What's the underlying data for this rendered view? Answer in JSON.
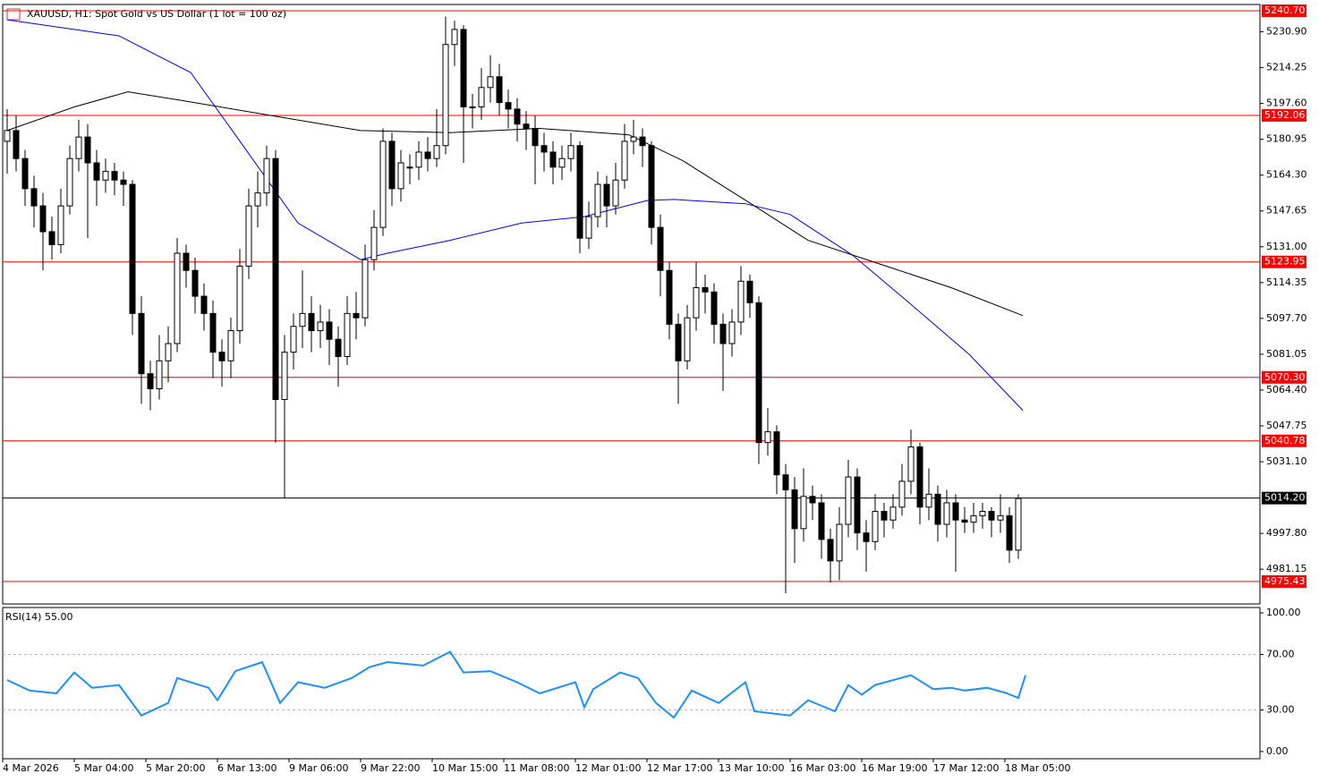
{
  "chart_data": {
    "type": "candlestick",
    "title": "XAUUSD, H1:  Spot Gold vs US Dollar (1 lot = 100 oz)",
    "ylim": [
      4965.0,
      5243.6
    ],
    "yticks": [
      {
        "value": 5230.9,
        "label": "5230.90"
      },
      {
        "value": 5214.25,
        "label": "5214.25"
      },
      {
        "value": 5197.6,
        "label": "5197.60"
      },
      {
        "value": 5180.95,
        "label": "5180.95"
      },
      {
        "value": 5164.3,
        "label": "5164.30"
      },
      {
        "value": 5147.65,
        "label": "5147.65"
      },
      {
        "value": 5131.0,
        "label": "5131.00"
      },
      {
        "value": 5114.35,
        "label": "5114.35"
      },
      {
        "value": 5097.7,
        "label": "5097.70"
      },
      {
        "value": 5081.05,
        "label": "5081.05"
      },
      {
        "value": 5064.4,
        "label": "5064.40"
      },
      {
        "value": 5047.75,
        "label": "5047.75"
      },
      {
        "value": 5031.1,
        "label": "5031.10"
      },
      {
        "value": 4997.8,
        "label": "4997.80"
      },
      {
        "value": 4981.15,
        "label": "4981.15"
      }
    ],
    "levels": [
      {
        "value": 5240.7,
        "label": "5240.70",
        "color": "#ff0000"
      },
      {
        "value": 5192.06,
        "label": "5192.06",
        "color": "#ff0000"
      },
      {
        "value": 5123.95,
        "label": "5123.95",
        "color": "#ff0000"
      },
      {
        "value": 5070.3,
        "label": "5070.30",
        "color": "#ff0000"
      },
      {
        "value": 5040.78,
        "label": "5040.78",
        "color": "#ff0000"
      },
      {
        "value": 5014.2,
        "label": "5014.20",
        "color": "#000000"
      },
      {
        "value": 4975.43,
        "label": "4975.43",
        "color": "#ff0000"
      }
    ],
    "xlabels": [
      "4 Mar 2026",
      "5 Mar 04:00",
      "5 Mar 20:00",
      "6 Mar 13:00",
      "9 Mar 06:00",
      "9 Mar 22:00",
      "10 Mar 15:00",
      "11 Mar 08:00",
      "12 Mar 01:00",
      "12 Mar 17:00",
      "13 Mar 10:00",
      "16 Mar 03:00",
      "16 Mar 19:00",
      "17 Mar 12:00",
      "18 Mar 05:00"
    ],
    "ohlc": [
      [
        5180,
        5195,
        5165,
        5185
      ],
      [
        5185,
        5192,
        5166,
        5172
      ],
      [
        5172,
        5176,
        5150,
        5158
      ],
      [
        5158,
        5164,
        5140,
        5150
      ],
      [
        5150,
        5156,
        5120,
        5138
      ],
      [
        5138,
        5145,
        5125,
        5132
      ],
      [
        5132,
        5158,
        5128,
        5150
      ],
      [
        5150,
        5178,
        5146,
        5172
      ],
      [
        5172,
        5190,
        5166,
        5182
      ],
      [
        5182,
        5188,
        5135,
        5170
      ],
      [
        5170,
        5176,
        5150,
        5162
      ],
      [
        5162,
        5172,
        5156,
        5166
      ],
      [
        5166,
        5170,
        5155,
        5162
      ],
      [
        5162,
        5166,
        5150,
        5160
      ],
      [
        5160,
        5162,
        5090,
        5100
      ],
      [
        5100,
        5108,
        5058,
        5072
      ],
      [
        5072,
        5078,
        5055,
        5065
      ],
      [
        5065,
        5090,
        5060,
        5078
      ],
      [
        5078,
        5094,
        5068,
        5086
      ],
      [
        5086,
        5135,
        5082,
        5128
      ],
      [
        5128,
        5132,
        5112,
        5120
      ],
      [
        5120,
        5126,
        5100,
        5108
      ],
      [
        5108,
        5114,
        5092,
        5100
      ],
      [
        5100,
        5106,
        5070,
        5082
      ],
      [
        5082,
        5088,
        5066,
        5078
      ],
      [
        5078,
        5098,
        5070,
        5092
      ],
      [
        5092,
        5130,
        5086,
        5122
      ],
      [
        5122,
        5158,
        5116,
        5150
      ],
      [
        5150,
        5166,
        5140,
        5156
      ],
      [
        5156,
        5178,
        5150,
        5172
      ],
      [
        5172,
        5176,
        5040,
        5060
      ],
      [
        5060,
        5090,
        5014,
        5082
      ],
      [
        5082,
        5100,
        5074,
        5094
      ],
      [
        5094,
        5120,
        5084,
        5100
      ],
      [
        5100,
        5108,
        5082,
        5092
      ],
      [
        5092,
        5104,
        5084,
        5096
      ],
      [
        5096,
        5102,
        5076,
        5088
      ],
      [
        5088,
        5094,
        5066,
        5080
      ],
      [
        5080,
        5108,
        5076,
        5100
      ],
      [
        5100,
        5110,
        5088,
        5098
      ],
      [
        5098,
        5132,
        5094,
        5125
      ],
      [
        5125,
        5148,
        5120,
        5140
      ],
      [
        5140,
        5186,
        5136,
        5180
      ],
      [
        5180,
        5184,
        5150,
        5158
      ],
      [
        5158,
        5176,
        5152,
        5170
      ],
      [
        5168,
        5174,
        5160,
        5168
      ],
      [
        5168,
        5180,
        5162,
        5175
      ],
      [
        5175,
        5182,
        5166,
        5172
      ],
      [
        5172,
        5195,
        5168,
        5178
      ],
      [
        5178,
        5238,
        5174,
        5225
      ],
      [
        5225,
        5236,
        5215,
        5232
      ],
      [
        5232,
        5234,
        5170,
        5196
      ],
      [
        5196,
        5202,
        5186,
        5196
      ],
      [
        5196,
        5214,
        5190,
        5205
      ],
      [
        5205,
        5220,
        5198,
        5210
      ],
      [
        5210,
        5216,
        5192,
        5198
      ],
      [
        5198,
        5204,
        5186,
        5195
      ],
      [
        5195,
        5200,
        5180,
        5188
      ],
      [
        5188,
        5194,
        5176,
        5186
      ],
      [
        5186,
        5192,
        5160,
        5178
      ],
      [
        5178,
        5184,
        5166,
        5175
      ],
      [
        5175,
        5180,
        5160,
        5168
      ],
      [
        5168,
        5178,
        5162,
        5172
      ],
      [
        5172,
        5184,
        5166,
        5178
      ],
      [
        5178,
        5180,
        5128,
        5135
      ],
      [
        5135,
        5152,
        5130,
        5145
      ],
      [
        5145,
        5166,
        5140,
        5160
      ],
      [
        5160,
        5164,
        5140,
        5150
      ],
      [
        5150,
        5170,
        5146,
        5162
      ],
      [
        5162,
        5188,
        5158,
        5180
      ],
      [
        5180,
        5190,
        5174,
        5182
      ],
      [
        5182,
        5186,
        5168,
        5178
      ],
      [
        5178,
        5180,
        5132,
        5140
      ],
      [
        5140,
        5146,
        5108,
        5120
      ],
      [
        5120,
        5124,
        5088,
        5095
      ],
      [
        5095,
        5100,
        5058,
        5078
      ],
      [
        5078,
        5104,
        5074,
        5098
      ],
      [
        5098,
        5124,
        5092,
        5112
      ],
      [
        5112,
        5118,
        5100,
        5110
      ],
      [
        5110,
        5114,
        5086,
        5095
      ],
      [
        5095,
        5100,
        5064,
        5086
      ],
      [
        5086,
        5102,
        5080,
        5096
      ],
      [
        5096,
        5122,
        5090,
        5115
      ],
      [
        5115,
        5118,
        5098,
        5105
      ],
      [
        5105,
        5108,
        5030,
        5040
      ],
      [
        5040,
        5056,
        5034,
        5045
      ],
      [
        5045,
        5048,
        5016,
        5025
      ],
      [
        5025,
        5030,
        4970,
        5018
      ],
      [
        5018,
        5024,
        4984,
        5000
      ],
      [
        5000,
        5028,
        4994,
        5015
      ],
      [
        5015,
        5020,
        5004,
        5012
      ],
      [
        5012,
        5016,
        4986,
        4995
      ],
      [
        4995,
        5000,
        4975,
        4985
      ],
      [
        4985,
        5010,
        4976,
        5002
      ],
      [
        5002,
        5032,
        4996,
        5024
      ],
      [
        5024,
        5028,
        4990,
        4998
      ],
      [
        4998,
        5004,
        4980,
        4994
      ],
      [
        4994,
        5016,
        4990,
        5008
      ],
      [
        5008,
        5012,
        4996,
        5004
      ],
      [
        5004,
        5016,
        5000,
        5010
      ],
      [
        5010,
        5030,
        5006,
        5022
      ],
      [
        5022,
        5046,
        5016,
        5038
      ],
      [
        5038,
        5040,
        5002,
        5010
      ],
      [
        5010,
        5028,
        5004,
        5016
      ],
      [
        5016,
        5020,
        4994,
        5002
      ],
      [
        5002,
        5018,
        4996,
        5012
      ],
      [
        5012,
        5016,
        4980,
        5004
      ],
      [
        5004,
        5010,
        4998,
        5003
      ],
      [
        5003,
        5012,
        4998,
        5006
      ],
      [
        5006,
        5012,
        5000,
        5008
      ],
      [
        5008,
        5010,
        4996,
        5004
      ],
      [
        5004,
        5016,
        4998,
        5006
      ],
      [
        5006,
        5010,
        4984,
        4990
      ],
      [
        4990,
        5016,
        4986,
        5014
      ]
    ],
    "overlays": [
      {
        "color": "#0000ff",
        "x": [
          0,
          12.5,
          20.5,
          25.5,
          32.5,
          39.5,
          42.5,
          49.5,
          57.5,
          64.5,
          71.5,
          74.5,
          82.5,
          87.5,
          94.5,
          100.5,
          107.5,
          113.5
        ],
        "values": [
          5236.5,
          5229,
          5212,
          5183,
          5142,
          5125,
          5128,
          5134,
          5142,
          5145,
          5152.5,
          5153,
          5151,
          5146,
          5127,
          5106,
          5081,
          5055
        ]
      },
      {
        "color": "#000000",
        "x": [
          0,
          7.5,
          13.5,
          19.5,
          29.5,
          39.5,
          49.5,
          59.5,
          69.5,
          75.5,
          83.5,
          89.5,
          97.5,
          105.5,
          113.5
        ],
        "values": [
          5185,
          5196,
          5203,
          5199,
          5192,
          5185,
          5184,
          5186,
          5183,
          5171,
          5150,
          5134,
          5123,
          5112,
          5099
        ]
      }
    ],
    "rsi": {
      "label": "RSI(14) 55.00",
      "color": "#1e90ff",
      "ylim": [
        -5.2,
        103.9
      ],
      "yticks": [
        {
          "value": 100,
          "label": "100.00"
        },
        {
          "value": 70,
          "label": "70.00"
        },
        {
          "value": 30,
          "label": "30.00"
        },
        {
          "value": 0,
          "label": "0.00"
        }
      ],
      "dashed": [
        70,
        30
      ],
      "x": [
        0,
        2.5,
        5.5,
        7.5,
        9.5,
        12.5,
        15,
        18,
        19,
        22.5,
        23.5,
        25.5,
        28.5,
        30.5,
        32.5,
        35.5,
        38.5,
        40.5,
        42.5,
        46.5,
        49.5,
        51,
        54,
        57,
        59.5,
        63.5,
        64.5,
        65.5,
        68.5,
        70.5,
        72.5,
        74.5,
        76.5,
        79.5,
        82.5,
        83.5,
        87.5,
        89.5,
        92.5,
        94,
        95.5,
        97,
        101,
        103.5,
        105.5,
        107,
        109.5,
        111.5,
        113,
        113.8
      ],
      "values": [
        51.6,
        44,
        42,
        57,
        46,
        48,
        26,
        35,
        53,
        46,
        37,
        58,
        64.5,
        35,
        50,
        46,
        53,
        61,
        64.5,
        62,
        72,
        57,
        58,
        50,
        42,
        50,
        32,
        45,
        57,
        53,
        35,
        24.5,
        44,
        35,
        50,
        29,
        26,
        37,
        29,
        48,
        41,
        48,
        55,
        45,
        46,
        44,
        46,
        42.5,
        38.7,
        55
      ]
    }
  }
}
